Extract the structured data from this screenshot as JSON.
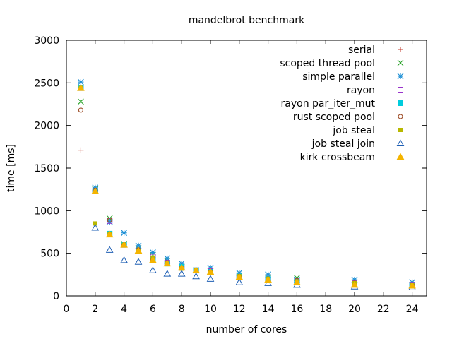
{
  "chart_data": {
    "type": "scatter",
    "title": "mandelbrot benchmark",
    "xlabel": "number of cores",
    "ylabel": "time [ms]",
    "xlim": [
      0,
      25
    ],
    "ylim": [
      0,
      3000
    ],
    "xticks": [
      0,
      2,
      4,
      6,
      8,
      10,
      12,
      14,
      16,
      18,
      20,
      22,
      24
    ],
    "yticks": [
      0,
      500,
      1000,
      1500,
      2000,
      2500,
      3000
    ],
    "grid": false,
    "legend_position": "top-right",
    "series": [
      {
        "name": "serial",
        "marker": "plus",
        "color": "#c0392b",
        "points": [
          [
            1,
            1710
          ]
        ]
      },
      {
        "name": "scoped thread pool",
        "marker": "cross",
        "color": "#20a020",
        "points": [
          [
            1,
            2280
          ],
          [
            2,
            1250
          ],
          [
            3,
            910
          ],
          [
            4,
            610
          ],
          [
            5,
            560
          ],
          [
            6,
            480
          ],
          [
            7,
            410
          ],
          [
            8,
            340
          ],
          [
            9,
            300
          ],
          [
            10,
            290
          ],
          [
            12,
            240
          ],
          [
            14,
            210
          ],
          [
            16,
            210
          ],
          [
            20,
            160
          ],
          [
            24,
            130
          ]
        ]
      },
      {
        "name": "simple parallel",
        "marker": "star",
        "color": "#1e90d6",
        "points": [
          [
            1,
            2510
          ],
          [
            2,
            1270
          ],
          [
            3,
            870
          ],
          [
            4,
            740
          ],
          [
            5,
            590
          ],
          [
            6,
            510
          ],
          [
            7,
            440
          ],
          [
            8,
            380
          ],
          [
            9,
            300
          ],
          [
            10,
            330
          ],
          [
            12,
            270
          ],
          [
            14,
            250
          ],
          [
            16,
            190
          ],
          [
            20,
            190
          ],
          [
            24,
            160
          ]
        ]
      },
      {
        "name": "rayon",
        "marker": "square-open",
        "color": "#9933cc",
        "points": [
          [
            1,
            2440
          ],
          [
            2,
            1230
          ],
          [
            3,
            880
          ],
          [
            4,
            600
          ],
          [
            5,
            530
          ],
          [
            6,
            460
          ],
          [
            7,
            390
          ],
          [
            8,
            330
          ],
          [
            9,
            300
          ],
          [
            10,
            290
          ],
          [
            12,
            230
          ],
          [
            14,
            200
          ],
          [
            16,
            180
          ],
          [
            20,
            150
          ],
          [
            24,
            130
          ]
        ]
      },
      {
        "name": "rayon par_iter_mut",
        "marker": "square-filled",
        "color": "#00ccdd",
        "points": [
          [
            1,
            2440
          ],
          [
            2,
            1230
          ],
          [
            3,
            730
          ],
          [
            4,
            600
          ],
          [
            5,
            530
          ],
          [
            6,
            420
          ],
          [
            7,
            380
          ],
          [
            8,
            340
          ],
          [
            9,
            300
          ],
          [
            10,
            280
          ],
          [
            12,
            230
          ],
          [
            14,
            200
          ],
          [
            16,
            170
          ],
          [
            20,
            140
          ],
          [
            24,
            120
          ]
        ]
      },
      {
        "name": "rust scoped pool",
        "marker": "circle-open",
        "color": "#a0522d",
        "points": [
          [
            1,
            2180
          ],
          [
            2,
            1240
          ],
          [
            3,
            890
          ],
          [
            4,
            600
          ],
          [
            5,
            540
          ],
          [
            6,
            430
          ],
          [
            7,
            390
          ],
          [
            8,
            330
          ],
          [
            9,
            300
          ],
          [
            10,
            280
          ],
          [
            12,
            230
          ],
          [
            14,
            200
          ],
          [
            16,
            180
          ],
          [
            20,
            150
          ],
          [
            24,
            130
          ]
        ]
      },
      {
        "name": "job steal",
        "marker": "square-small",
        "color": "#b8b800",
        "points": [
          [
            1,
            2440
          ],
          [
            2,
            850
          ],
          [
            3,
            730
          ],
          [
            4,
            600
          ],
          [
            5,
            520
          ],
          [
            6,
            450
          ],
          [
            7,
            380
          ],
          [
            8,
            320
          ],
          [
            9,
            300
          ],
          [
            10,
            270
          ],
          [
            12,
            230
          ],
          [
            14,
            200
          ],
          [
            16,
            170
          ],
          [
            20,
            150
          ],
          [
            24,
            130
          ]
        ]
      },
      {
        "name": "job steal join",
        "marker": "triangle-open",
        "color": "#1e5fb4",
        "points": [
          [
            2,
            800
          ],
          [
            3,
            540
          ],
          [
            4,
            420
          ],
          [
            5,
            400
          ],
          [
            6,
            300
          ],
          [
            7,
            260
          ],
          [
            8,
            260
          ],
          [
            9,
            230
          ],
          [
            10,
            200
          ],
          [
            12,
            160
          ],
          [
            14,
            150
          ],
          [
            16,
            130
          ],
          [
            20,
            110
          ],
          [
            24,
            100
          ]
        ]
      },
      {
        "name": "kirk crossbeam",
        "marker": "triangle-filled",
        "color": "#f4b400",
        "points": [
          [
            1,
            2440
          ],
          [
            2,
            1230
          ],
          [
            3,
            720
          ],
          [
            4,
            600
          ],
          [
            5,
            530
          ],
          [
            6,
            420
          ],
          [
            7,
            380
          ],
          [
            8,
            330
          ],
          [
            9,
            300
          ],
          [
            10,
            280
          ],
          [
            12,
            220
          ],
          [
            14,
            190
          ],
          [
            16,
            160
          ],
          [
            20,
            130
          ],
          [
            24,
            120
          ]
        ]
      }
    ]
  }
}
